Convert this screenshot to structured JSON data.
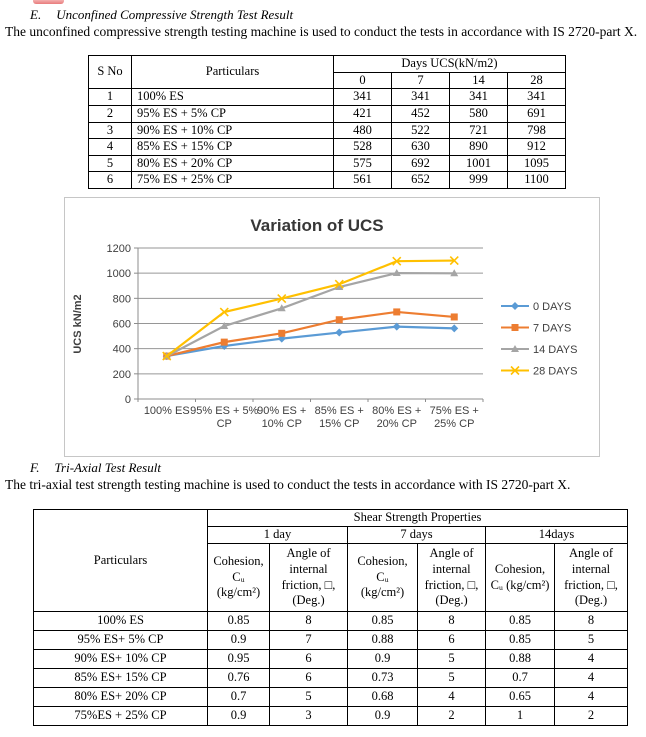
{
  "artifact": {
    "top_red_shape_color": "#e87c7c"
  },
  "section_e": {
    "label": "E.",
    "title": "Unconfined Compressive Strength Test Result",
    "body": "The unconfined compressive strength testing machine is used to conduct the tests in accordance with IS 2720-part X."
  },
  "ucs_table": {
    "headers": {
      "s_no": "S No",
      "particulars": "Particulars",
      "days_group": "Days UCS(kN/m2)",
      "days": [
        "0",
        "7",
        "14",
        "28"
      ]
    },
    "rows": [
      [
        "1",
        "100% ES",
        "341",
        "341",
        "341",
        "341"
      ],
      [
        "2",
        "95% ES + 5% CP",
        "421",
        "452",
        "580",
        "691"
      ],
      [
        "3",
        "90% ES + 10% CP",
        "480",
        "522",
        "721",
        "798"
      ],
      [
        "4",
        "85% ES + 15% CP",
        "528",
        "630",
        "890",
        "912"
      ],
      [
        "5",
        "80% ES + 20% CP",
        "575",
        "692",
        "1001",
        "1095"
      ],
      [
        "6",
        "75% ES + 25% CP",
        "561",
        "652",
        "999",
        "1100"
      ]
    ]
  },
  "chart_data": {
    "type": "line",
    "title": "Variation of UCS",
    "ylabel": "UCS kN/m2",
    "categories": [
      "100% ES",
      "95% ES + 5% CP",
      "90% ES + 10% CP",
      "85% ES + 15% CP",
      "80% ES + 20% CP",
      "75% ES + 25% CP"
    ],
    "categories_wrapped": [
      [
        "100% ES"
      ],
      [
        "95% ES + 5%",
        "CP"
      ],
      [
        "90% ES +",
        "10% CP"
      ],
      [
        "85% ES +",
        "15% CP"
      ],
      [
        "80% ES +",
        "20% CP"
      ],
      [
        "75% ES +",
        "25% CP"
      ]
    ],
    "series": [
      {
        "name": "0 DAYS",
        "marker": "diamond",
        "color": "#5B9BD5",
        "values": [
          341,
          421,
          480,
          528,
          575,
          561
        ]
      },
      {
        "name": "7 DAYS",
        "marker": "square",
        "color": "#ED7D31",
        "values": [
          341,
          452,
          522,
          630,
          692,
          652
        ]
      },
      {
        "name": "14 DAYS",
        "marker": "triangle",
        "color": "#A5A5A5",
        "values": [
          341,
          580,
          721,
          890,
          1001,
          999
        ]
      },
      {
        "name": "28 DAYS",
        "marker": "x",
        "color": "#FFC000",
        "values": [
          341,
          691,
          798,
          912,
          1095,
          1100
        ]
      }
    ],
    "ylim": [
      0,
      1200
    ],
    "ytick_step": 200,
    "grid": true,
    "grid_color": "#969696",
    "axis_color": "#8c8c8c",
    "legend_position": "right"
  },
  "section_f": {
    "label": "F.",
    "title": "Tri-Axial Test Result",
    "body": "The tri-axial test strength testing machine is used to conduct the tests in accordance with IS 2720-part X."
  },
  "triaxial_table": {
    "headers": {
      "particulars": "Particulars",
      "group": "Shear Strength Properties",
      "periods": [
        "1 day",
        "7 days",
        "14days"
      ],
      "cohesion_wrapped": "Cohesion,\nCᵤ\n(kg/cm²)",
      "cohesion_oneline": "Cohesion,\nCᵤ (kg/cm²)",
      "friction": "Angle of\ninternal\nfriction, □,\n(Deg.)"
    },
    "rows": [
      [
        "100% ES",
        "0.85",
        "8",
        "0.85",
        "8",
        "0.85",
        "8"
      ],
      [
        "95% ES+ 5% CP",
        "0.9",
        "7",
        "0.88",
        "6",
        "0.85",
        "5"
      ],
      [
        "90% ES+ 10% CP",
        "0.95",
        "6",
        "0.9",
        "5",
        "0.88",
        "4"
      ],
      [
        "85% ES+ 15% CP",
        "0.76",
        "6",
        "0.73",
        "5",
        "0.7",
        "4"
      ],
      [
        "80% ES+ 20% CP",
        "0.7",
        "5",
        "0.68",
        "4",
        "0.65",
        "4"
      ],
      [
        "75%ES + 25% CP",
        "0.9",
        "3",
        "0.9",
        "2",
        "1",
        "2"
      ]
    ]
  }
}
